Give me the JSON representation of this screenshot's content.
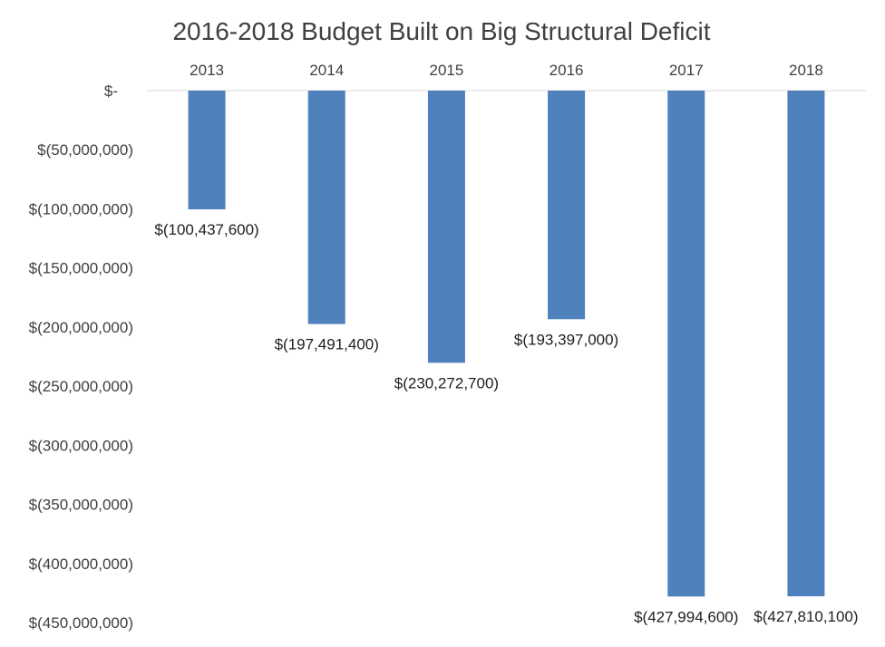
{
  "chart_data": {
    "type": "bar",
    "title": "2016-2018 Budget Built on Big Structural Deficit",
    "xlabel": "",
    "ylabel": "",
    "categories": [
      "2013",
      "2014",
      "2015",
      "2016",
      "2017",
      "2018"
    ],
    "values": [
      -100437600,
      -197491400,
      -230272700,
      -193397000,
      -427994600,
      -427810100
    ],
    "data_labels": [
      "$(100,437,600)",
      "$(197,491,400)",
      "$(230,272,700)",
      "$(193,397,000)",
      "$(427,994,600)",
      "$(427,810,100)"
    ],
    "ylim": [
      -450000000,
      0
    ],
    "y_ticks": [
      0,
      -50000000,
      -100000000,
      -150000000,
      -200000000,
      -250000000,
      -300000000,
      -350000000,
      -400000000,
      -450000000
    ],
    "y_tick_labels": [
      "$-",
      "$(50,000,000)",
      "$(100,000,000)",
      "$(150,000,000)",
      "$(200,000,000)",
      "$(250,000,000)",
      "$(300,000,000)",
      "$(350,000,000)",
      "$(400,000,000)",
      "$(450,000,000)"
    ],
    "x_axis_position": "top",
    "grid": false,
    "legend": "none",
    "bar_color": "#4F81BD",
    "axis_line_color": "#D9D9D9"
  }
}
